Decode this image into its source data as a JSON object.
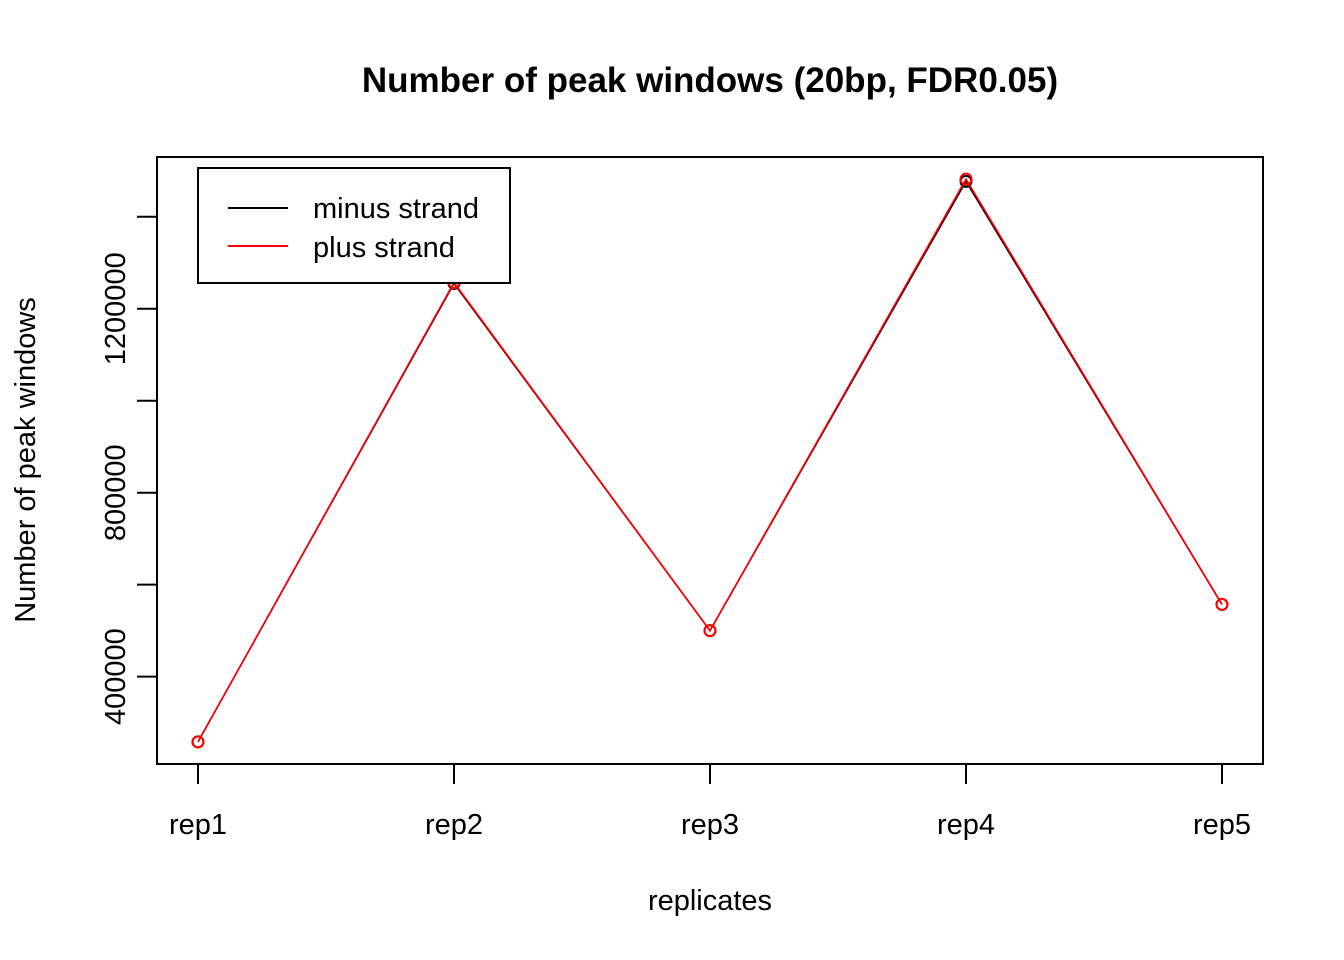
{
  "chart_data": {
    "type": "line",
    "title": "Number of peak windows (20bp, FDR0.05)",
    "xlabel": "replicates",
    "ylabel": "Number of peak windows",
    "categories": [
      "rep1",
      "rep2",
      "rep3",
      "rep4",
      "rep5"
    ],
    "ylim": [
      210000,
      1530000
    ],
    "yticks": [
      400000,
      600000,
      800000,
      1000000,
      1200000,
      1400000
    ],
    "ytick_labels": [
      "400000",
      "",
      "800000",
      "",
      "1200000",
      ""
    ],
    "series": [
      {
        "name": "minus strand",
        "color": "#000000",
        "values": [
          258000,
          1255000,
          500000,
          1477000,
          557000
        ]
      },
      {
        "name": "plus strand",
        "color": "#ff0000",
        "values": [
          258000,
          1257000,
          500000,
          1482000,
          557000
        ]
      }
    ],
    "grid": false,
    "legend_position": "top-left",
    "marker": "open-circle"
  }
}
